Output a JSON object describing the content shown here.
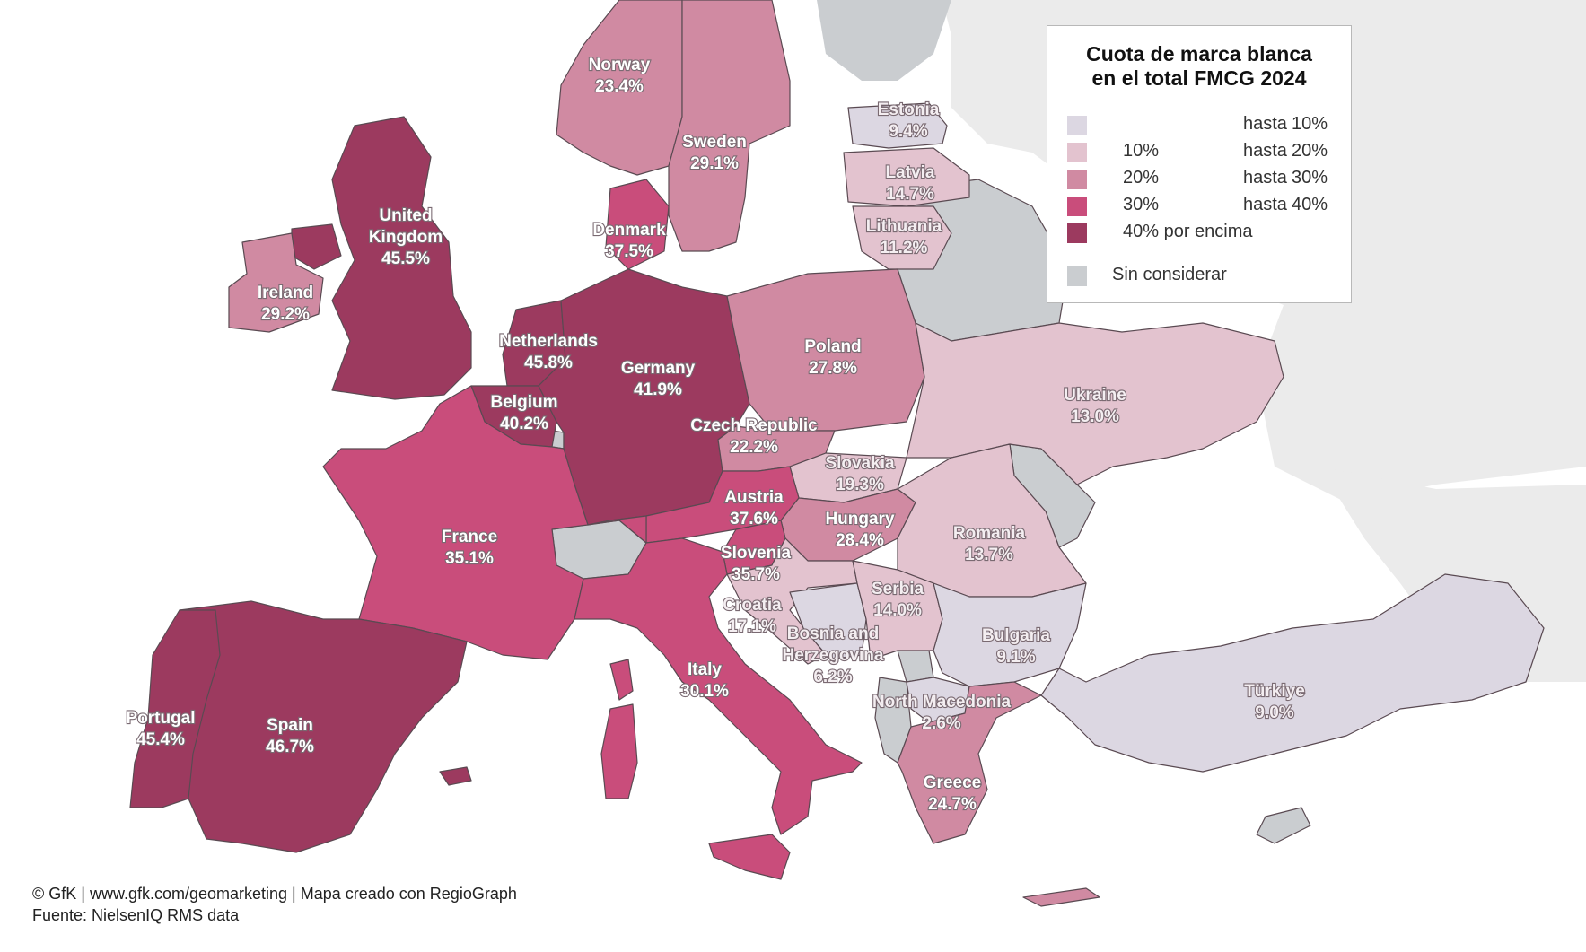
{
  "legend": {
    "title_line1": "Cuota de marca blanca",
    "title_line2": "en el total FMCG 2024",
    "classes": [
      {
        "lo": "",
        "mid": "hasta",
        "hi": "10%",
        "color": "#dcd7e2"
      },
      {
        "lo": "10%",
        "mid": "hasta",
        "hi": "20%",
        "color": "#e3c3cf"
      },
      {
        "lo": "20%",
        "mid": "hasta",
        "hi": "30%",
        "color": "#d08aa2"
      },
      {
        "lo": "30%",
        "mid": "hasta",
        "hi": "40%",
        "color": "#c94d7b"
      },
      {
        "lo": "40% por encima",
        "mid": "",
        "hi": "",
        "color": "#9c3a5f"
      }
    ],
    "not_considered": {
      "label": "Sin considerar",
      "color": "#cacdd0"
    }
  },
  "countries": [
    {
      "name": "Norway",
      "value": "23.4%"
    },
    {
      "name": "Sweden",
      "value": "29.1%"
    },
    {
      "name": "Estonia",
      "value": "9.4%"
    },
    {
      "name": "Latvia",
      "value": "14.7%"
    },
    {
      "name": "Lithuania",
      "value": "11.2%"
    },
    {
      "name": "Denmark",
      "value": "37.5%"
    },
    {
      "name": "United Kingdom",
      "value": "45.5%"
    },
    {
      "name": "Ireland",
      "value": "29.2%"
    },
    {
      "name": "Netherlands",
      "value": "45.8%"
    },
    {
      "name": "Belgium",
      "value": "40.2%"
    },
    {
      "name": "Germany",
      "value": "41.9%"
    },
    {
      "name": "Poland",
      "value": "27.8%"
    },
    {
      "name": "Czech Republic",
      "value": "22.2%"
    },
    {
      "name": "Slovakia",
      "value": "19.3%"
    },
    {
      "name": "Ukraine",
      "value": "13.0%"
    },
    {
      "name": "Austria",
      "value": "37.6%"
    },
    {
      "name": "Hungary",
      "value": "28.4%"
    },
    {
      "name": "Slovenia",
      "value": "35.7%"
    },
    {
      "name": "Romania",
      "value": "13.7%"
    },
    {
      "name": "France",
      "value": "35.1%"
    },
    {
      "name": "Croatia",
      "value": "17.1%"
    },
    {
      "name": "Serbia",
      "value": "14.0%"
    },
    {
      "name": "Bosnia and Herzegovina",
      "value": "6.2%"
    },
    {
      "name": "Bulgaria",
      "value": "9.1%"
    },
    {
      "name": "Italy",
      "value": "30.1%"
    },
    {
      "name": "North Macedonia",
      "value": "2.6%"
    },
    {
      "name": "Portugal",
      "value": "45.4%"
    },
    {
      "name": "Spain",
      "value": "46.7%"
    },
    {
      "name": "Türkiye",
      "value": "9.0%"
    },
    {
      "name": "Greece",
      "value": "24.7%"
    }
  ],
  "credits": {
    "line1": "© GfK | www.gfk.com/geomarketing | Mapa creado con RegioGraph",
    "line2": "Fuente: NielsenIQ RMS data"
  }
}
